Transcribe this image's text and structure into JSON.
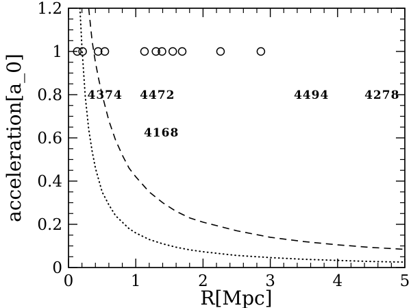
{
  "figure": {
    "background_color": "#ffffff",
    "frame_color": "#000000"
  },
  "chart_data": {
    "type": "scatter",
    "title": "",
    "xlabel": "R[Mpc]",
    "ylabel": "acceleration[a_0]",
    "xlim": [
      0,
      5
    ],
    "ylim": [
      0,
      1.2
    ],
    "grid": false,
    "legend": "none",
    "x_major_ticks": [
      0,
      1,
      2,
      3,
      4,
      5
    ],
    "x_major_labels": [
      "0",
      "1",
      "2",
      "3",
      "4",
      "5"
    ],
    "x_minor_step": 0.2,
    "y_major_ticks": [
      0,
      0.2,
      0.4,
      0.6,
      0.8,
      1,
      1.2
    ],
    "y_major_labels": [
      "0",
      "0.2",
      "0.4",
      "0.6",
      "0.8",
      "1",
      "1.2"
    ],
    "y_minor_step": 0.05,
    "series": [
      {
        "name": "galaxy-points",
        "type": "scatter",
        "marker": "open-circle",
        "x": [
          0.13,
          0.21,
          0.44,
          0.54,
          1.13,
          1.3,
          1.39,
          1.55,
          1.69,
          2.26,
          2.86
        ],
        "y": [
          1,
          1,
          1,
          1,
          1,
          1,
          1,
          1,
          1,
          1,
          1
        ]
      },
      {
        "name": "dashed-curve",
        "type": "line",
        "style": "dashed",
        "points": [
          [
            0.3,
            1.2
          ],
          [
            0.35,
            1.05
          ],
          [
            0.4,
            0.95
          ],
          [
            0.45,
            0.87
          ],
          [
            0.5,
            0.8
          ],
          [
            0.6,
            0.68
          ],
          [
            0.7,
            0.59
          ],
          [
            0.8,
            0.52
          ],
          [
            0.9,
            0.46
          ],
          [
            1.0,
            0.42
          ],
          [
            1.2,
            0.35
          ],
          [
            1.4,
            0.3
          ],
          [
            1.6,
            0.26
          ],
          [
            1.8,
            0.23
          ],
          [
            2.0,
            0.21
          ],
          [
            2.25,
            0.19
          ],
          [
            2.5,
            0.17
          ],
          [
            2.75,
            0.155
          ],
          [
            3.0,
            0.14
          ],
          [
            3.25,
            0.13
          ],
          [
            3.5,
            0.12
          ],
          [
            4.0,
            0.105
          ],
          [
            4.5,
            0.093
          ],
          [
            5.0,
            0.084
          ]
        ]
      },
      {
        "name": "dotted-curve",
        "type": "line",
        "style": "dotted",
        "points": [
          [
            0.17,
            1.2
          ],
          [
            0.2,
            1.02
          ],
          [
            0.25,
            0.79
          ],
          [
            0.3,
            0.64
          ],
          [
            0.35,
            0.54
          ],
          [
            0.4,
            0.46
          ],
          [
            0.5,
            0.35
          ],
          [
            0.6,
            0.29
          ],
          [
            0.7,
            0.24
          ],
          [
            0.8,
            0.21
          ],
          [
            0.9,
            0.18
          ],
          [
            1.0,
            0.16
          ],
          [
            1.2,
            0.13
          ],
          [
            1.4,
            0.11
          ],
          [
            1.6,
            0.094
          ],
          [
            1.8,
            0.082
          ],
          [
            2.0,
            0.073
          ],
          [
            2.5,
            0.056
          ],
          [
            3.0,
            0.046
          ],
          [
            3.5,
            0.038
          ],
          [
            4.0,
            0.033
          ],
          [
            4.5,
            0.028
          ],
          [
            5.0,
            0.025
          ]
        ]
      }
    ],
    "annotations": [
      {
        "text": "4374",
        "x": 0.28,
        "y": 0.8
      },
      {
        "text": "4472",
        "x": 1.06,
        "y": 0.8
      },
      {
        "text": "4494",
        "x": 3.35,
        "y": 0.8
      },
      {
        "text": "4278",
        "x": 4.4,
        "y": 0.8
      },
      {
        "text": "4168",
        "x": 1.12,
        "y": 0.625
      }
    ]
  }
}
